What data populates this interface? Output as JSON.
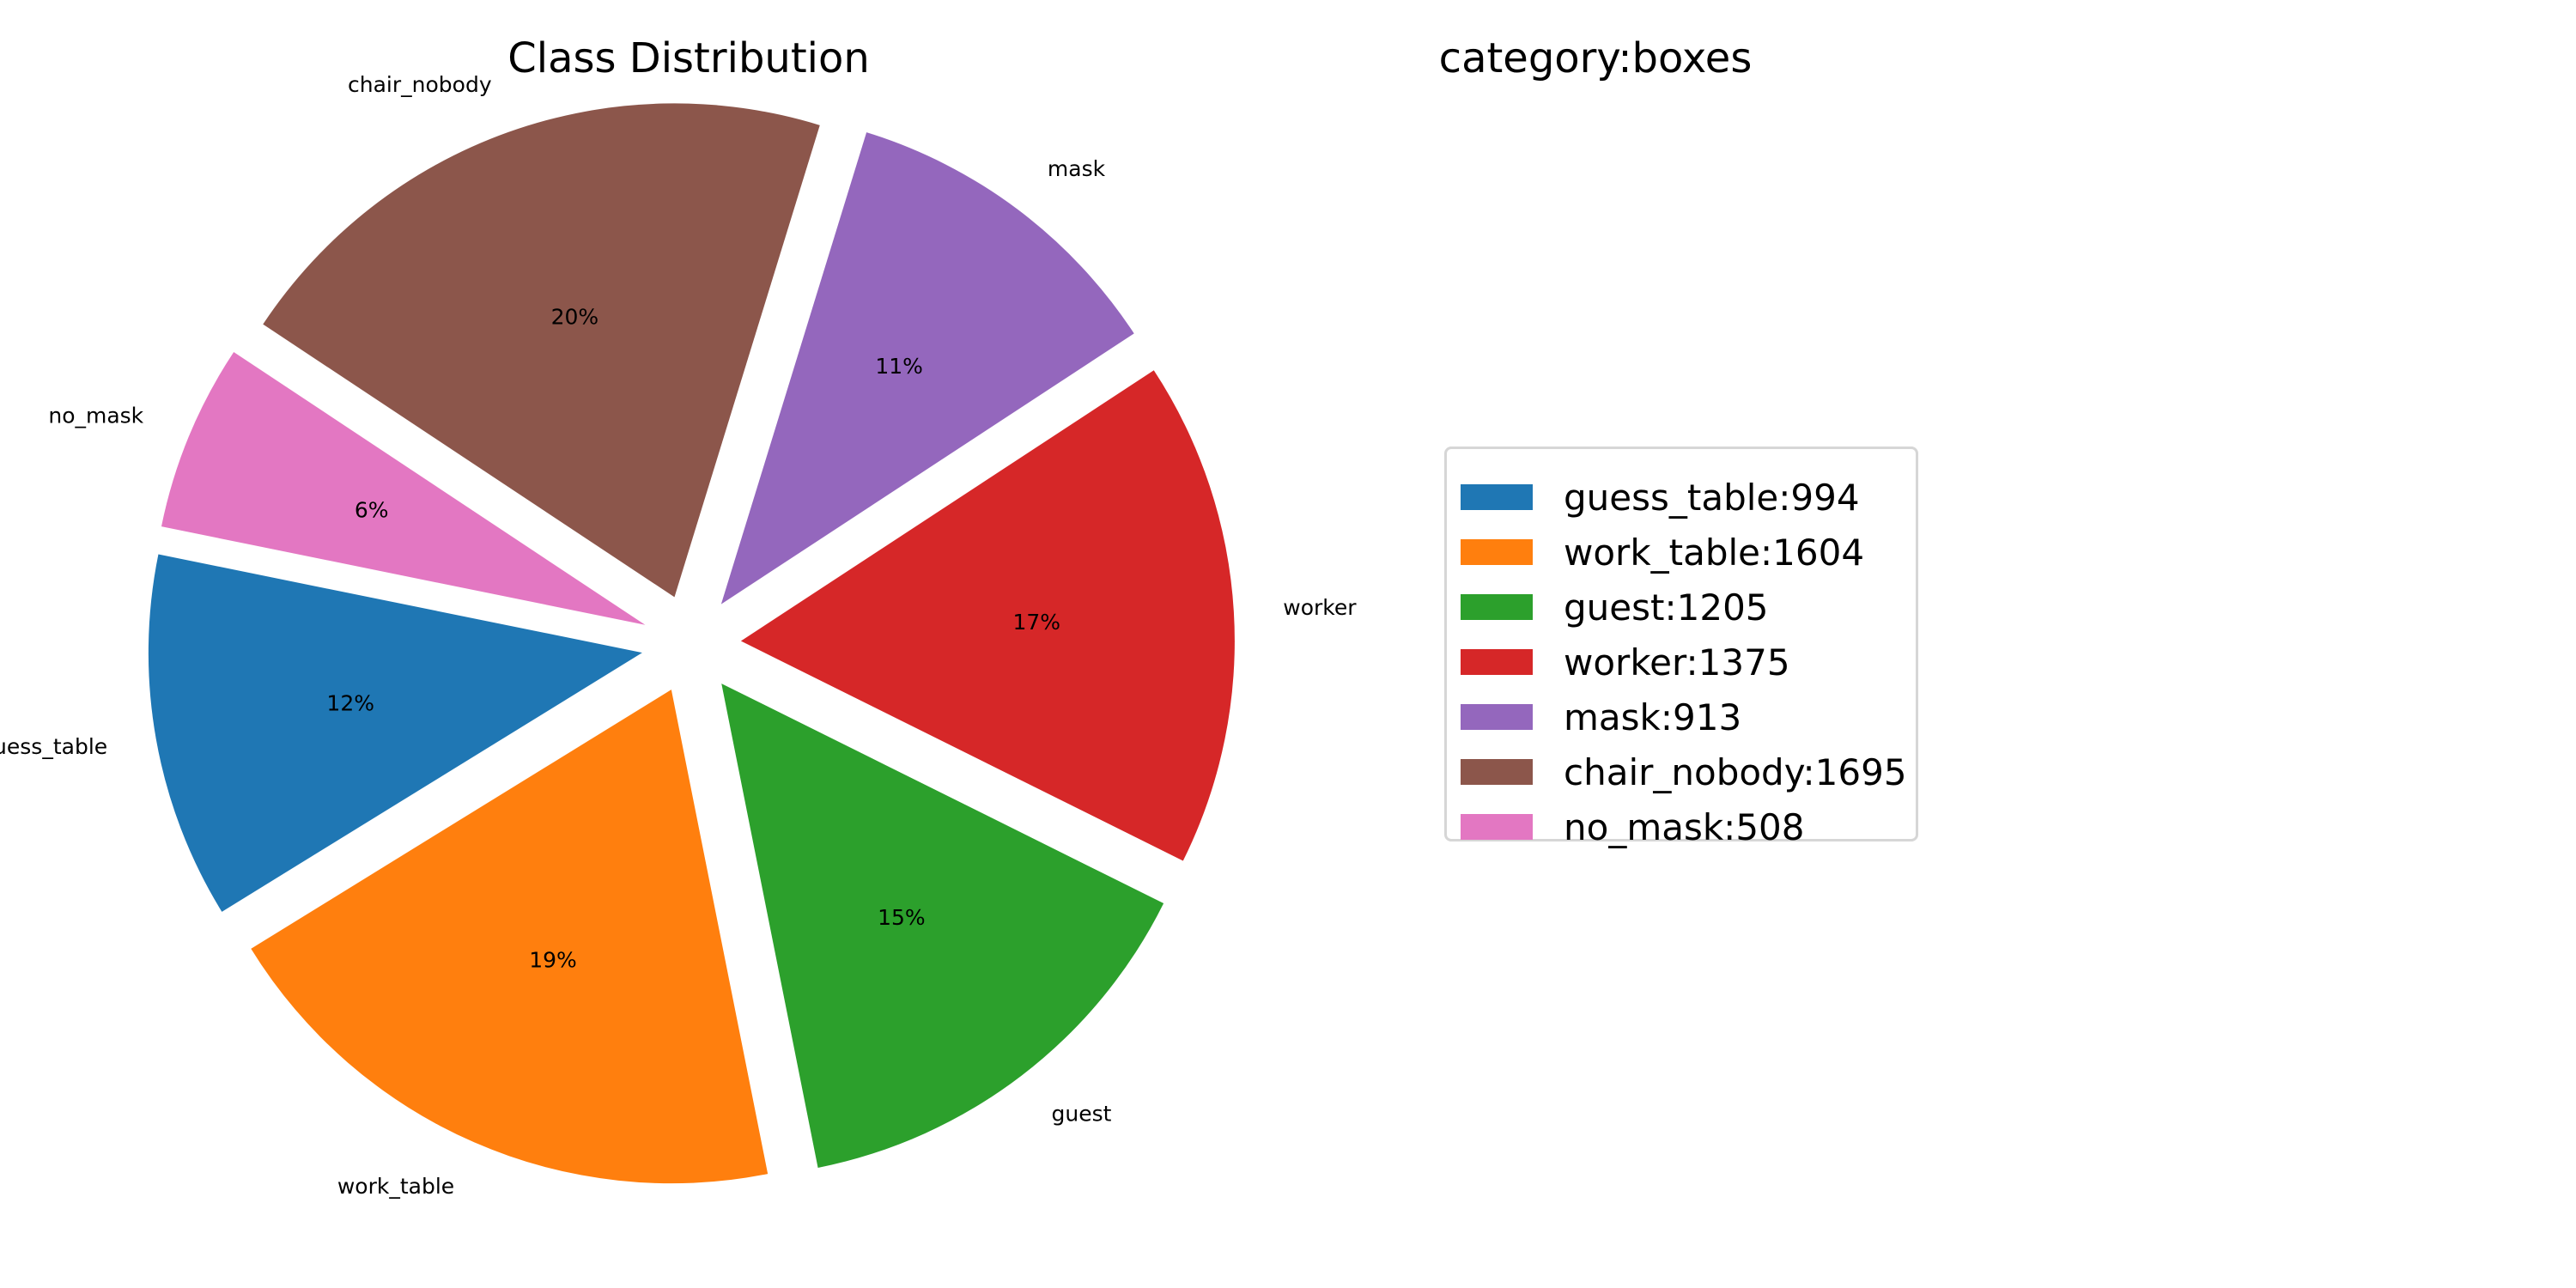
{
  "chart_data": {
    "type": "pie",
    "title": "Class Distribution",
    "legend_title": "category:boxes",
    "legend_placement": "right",
    "categories": [
      "guess_table",
      "work_table",
      "guest",
      "worker",
      "mask",
      "chair_nobody",
      "no_mask"
    ],
    "values": [
      994,
      1604,
      1205,
      1375,
      913,
      1695,
      508
    ],
    "percent_labels": [
      "12%",
      "19%",
      "15%",
      "17%",
      "11%",
      "20%",
      "6%"
    ],
    "legend_labels": [
      "guess_table:994",
      "work_table:1604",
      "guest:1205",
      "worker:1375",
      "mask:913",
      "chair_nobody:1695",
      "no_mask:508"
    ],
    "colors": [
      "#1f77b4",
      "#ff7f0e",
      "#2ca02c",
      "#d62728",
      "#9467bd",
      "#8c564b",
      "#e377c2"
    ]
  }
}
